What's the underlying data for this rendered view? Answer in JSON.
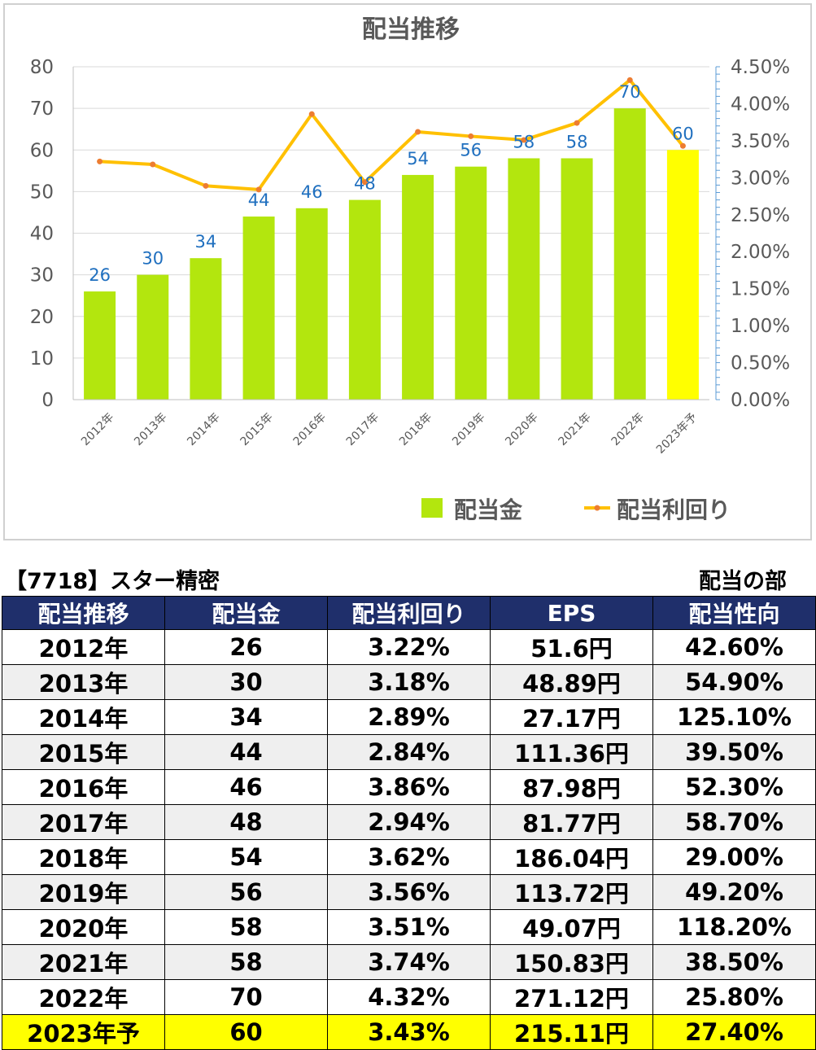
{
  "chart_data": {
    "type": "bar+line",
    "title": "配当推移",
    "categories": [
      "2012年",
      "2013年",
      "2014年",
      "2015年",
      "2016年",
      "2017年",
      "2018年",
      "2019年",
      "2020年",
      "2021年",
      "2022年",
      "2023年予"
    ],
    "series": [
      {
        "name": "配当金",
        "type": "bar",
        "axis": "left",
        "values": [
          26,
          30,
          34,
          44,
          46,
          48,
          54,
          56,
          58,
          58,
          70,
          60
        ],
        "colors": [
          "#b3e60e",
          "#b3e60e",
          "#b3e60e",
          "#b3e60e",
          "#b3e60e",
          "#b3e60e",
          "#b3e60e",
          "#b3e60e",
          "#b3e60e",
          "#b3e60e",
          "#b3e60e",
          "#ffff00"
        ]
      },
      {
        "name": "配当利回り",
        "type": "line",
        "axis": "right",
        "values": [
          3.22,
          3.18,
          2.89,
          2.84,
          3.86,
          2.94,
          3.62,
          3.56,
          3.51,
          3.74,
          4.32,
          3.43
        ],
        "color": "#ffc000",
        "marker_color": "#ed7d31"
      }
    ],
    "y_left": {
      "min": 0,
      "max": 80,
      "ticks": [
        "0",
        "10",
        "20",
        "30",
        "40",
        "50",
        "60",
        "70",
        "80"
      ]
    },
    "y_right": {
      "min": 0,
      "max": 4.5,
      "ticks": [
        "0.00%",
        "0.50%",
        "1.00%",
        "1.50%",
        "2.00%",
        "2.50%",
        "3.00%",
        "3.50%",
        "4.00%",
        "4.50%"
      ]
    },
    "data_labels": [
      "26",
      "30",
      "34",
      "44",
      "46",
      "48",
      "54",
      "56",
      "58",
      "58",
      "70",
      "60"
    ],
    "legend": {
      "position": "bottom-right",
      "items": [
        "配当金",
        "配当利回り"
      ]
    },
    "grid": true
  },
  "table": {
    "name": "【7718】スター精密",
    "section": "配当の部",
    "headers": [
      "配当推移",
      "配当金",
      "配当利回り",
      "EPS",
      "配当性向"
    ],
    "rows": [
      [
        "2012年",
        "26",
        "3.22%",
        "51.6円",
        "42.60%"
      ],
      [
        "2013年",
        "30",
        "3.18%",
        "48.89円",
        "54.90%"
      ],
      [
        "2014年",
        "34",
        "2.89%",
        "27.17円",
        "125.10%"
      ],
      [
        "2015年",
        "44",
        "2.84%",
        "111.36円",
        "39.50%"
      ],
      [
        "2016年",
        "46",
        "3.86%",
        "87.98円",
        "52.30%"
      ],
      [
        "2017年",
        "48",
        "2.94%",
        "81.77円",
        "58.70%"
      ],
      [
        "2018年",
        "54",
        "3.62%",
        "186.04円",
        "29.00%"
      ],
      [
        "2019年",
        "56",
        "3.56%",
        "113.72円",
        "49.20%"
      ],
      [
        "2020年",
        "58",
        "3.51%",
        "49.07円",
        "118.20%"
      ],
      [
        "2021年",
        "58",
        "3.74%",
        "150.83円",
        "38.50%"
      ],
      [
        "2022年",
        "70",
        "4.32%",
        "271.12円",
        "25.80%"
      ],
      [
        "2023年予",
        "60",
        "3.43%",
        "215.11円",
        "27.40%"
      ]
    ]
  }
}
